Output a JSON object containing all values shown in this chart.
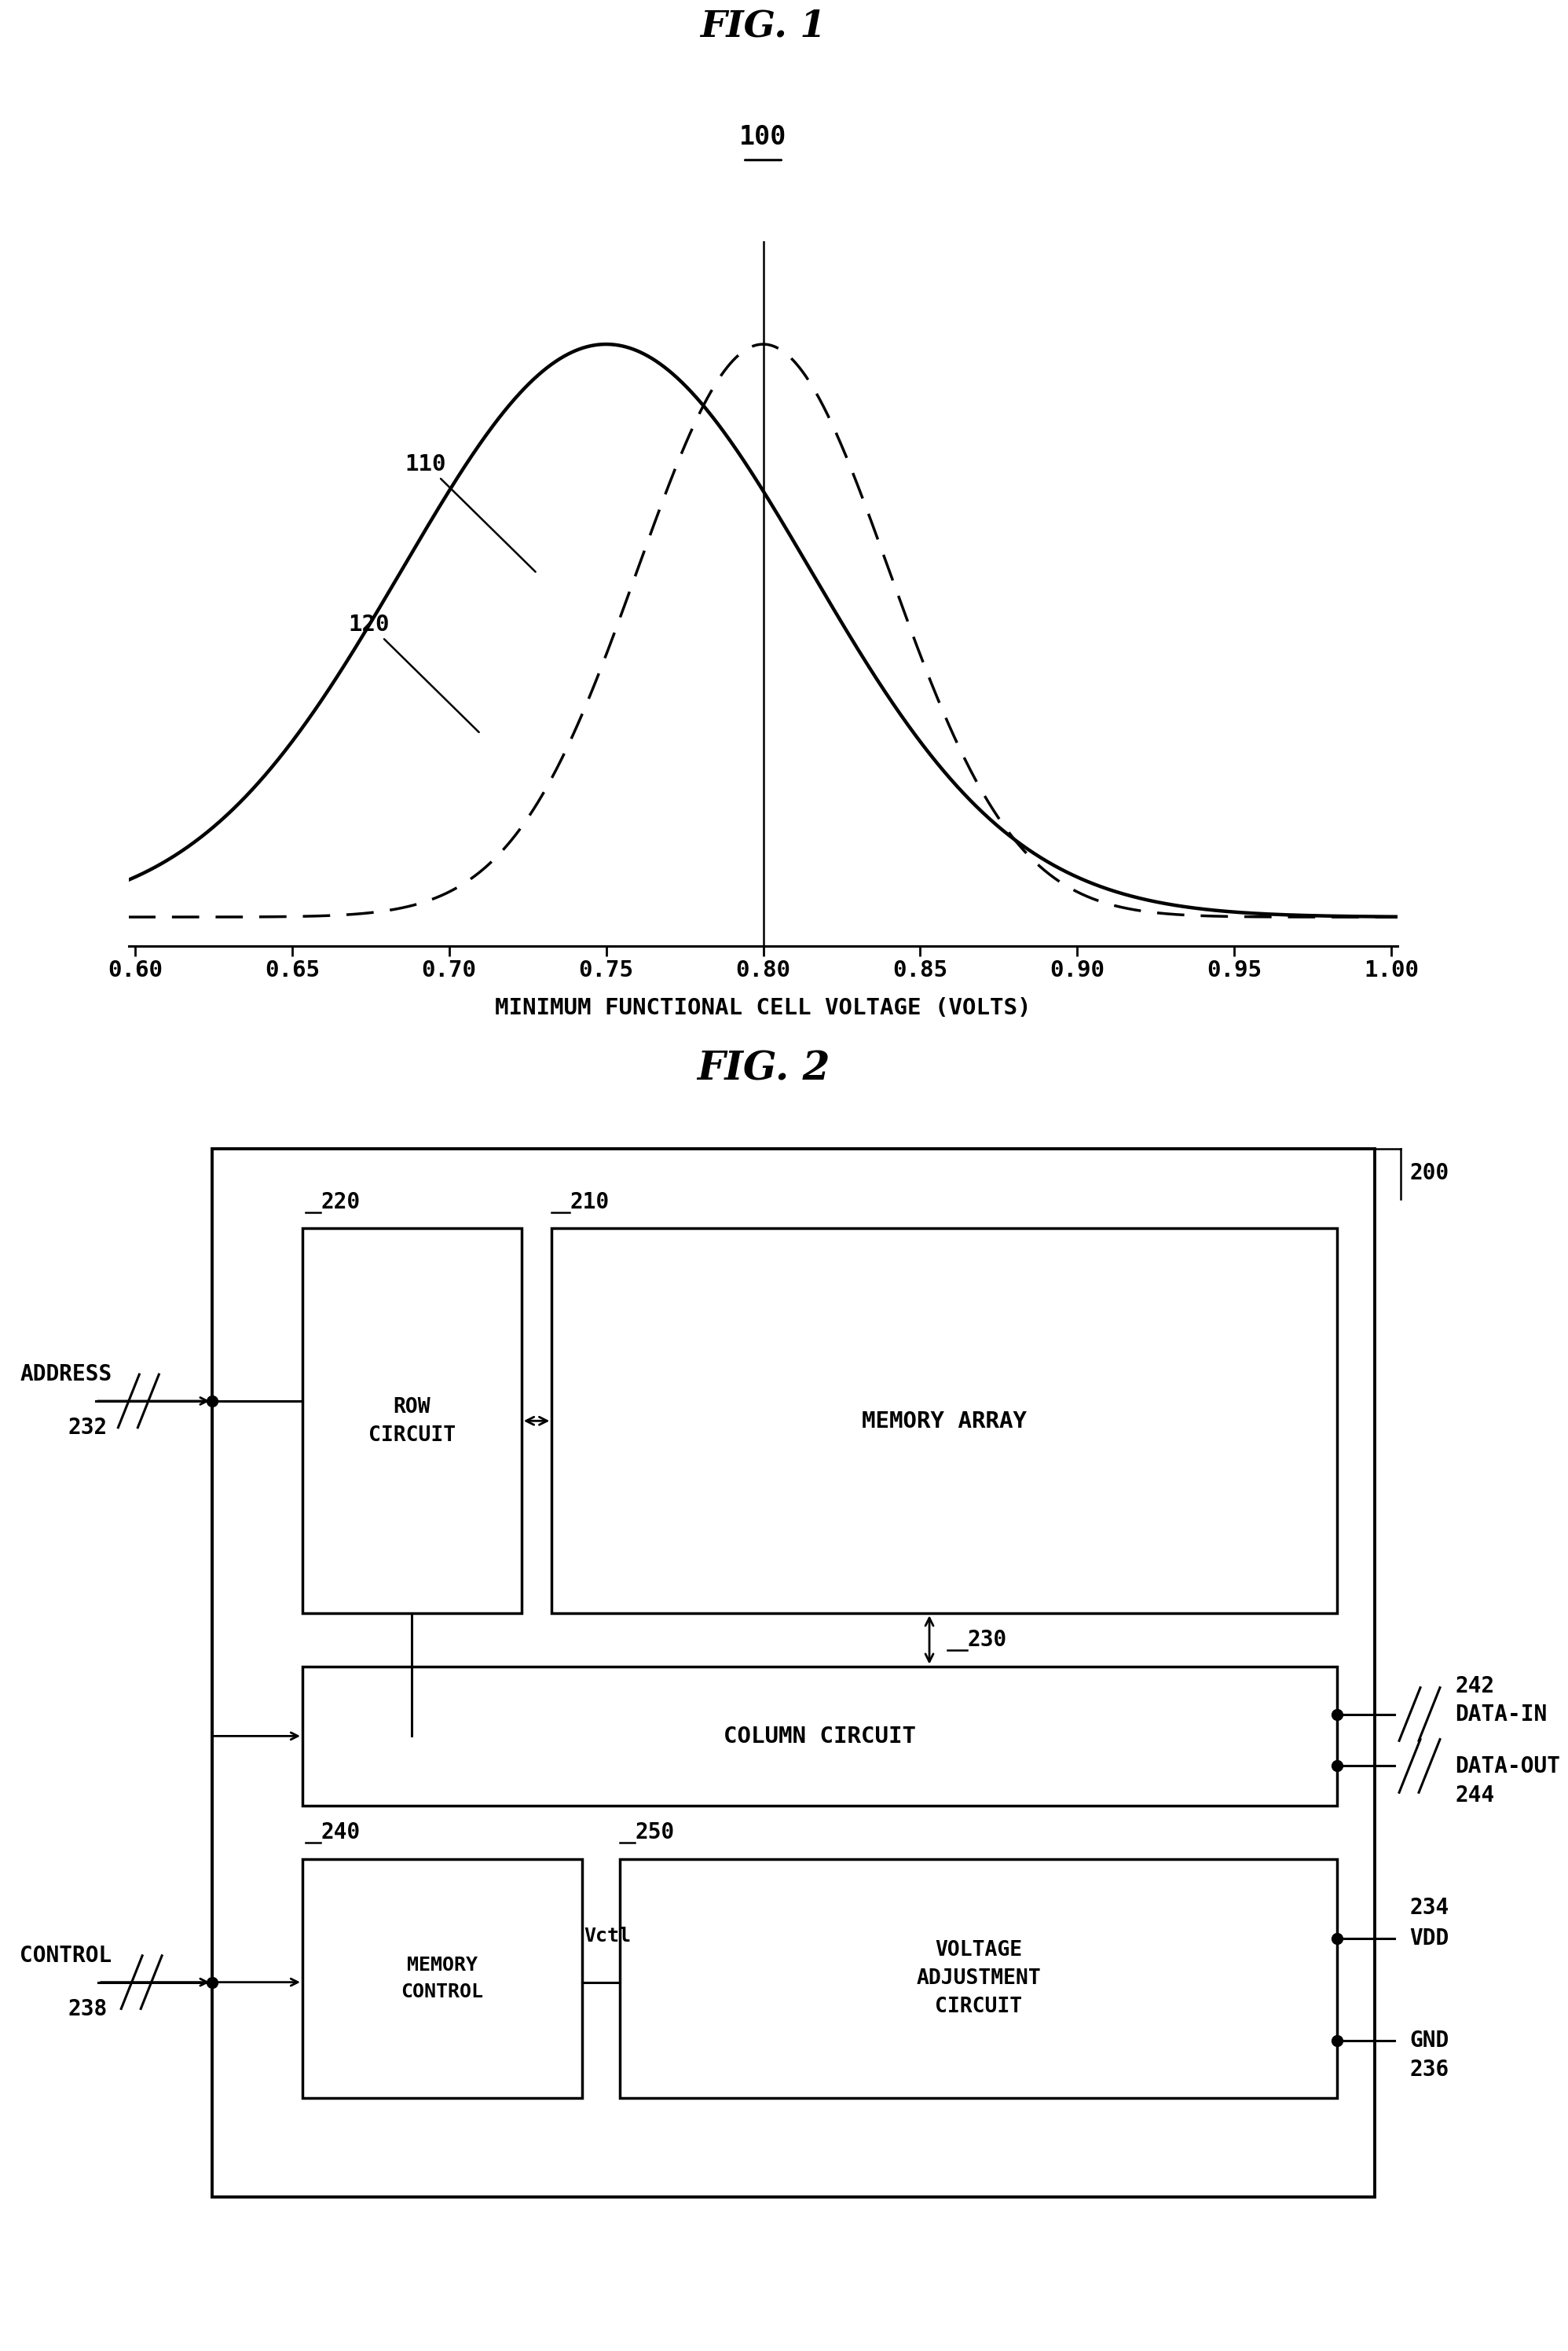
{
  "fig1_title": "FIG. 1",
  "fig1_label": "100",
  "curve1_label": "110",
  "curve2_label": "120",
  "solid_mean": 0.75,
  "solid_std": 0.065,
  "dashed_mean": 0.8,
  "dashed_std": 0.04,
  "xmin": 0.6,
  "xmax": 1.0,
  "xticks": [
    0.6,
    0.65,
    0.7,
    0.75,
    0.8,
    0.85,
    0.9,
    0.95,
    1.0
  ],
  "xlabel": "MINIMUM FUNCTIONAL CELL VOLTAGE (VOLTS)",
  "vertical_line_x": 0.8,
  "fig2_title": "FIG. 2",
  "box_200_label": "200",
  "box_210_label": "210",
  "box_220_label": "220",
  "box_230_label": "230",
  "box_240_label": "240",
  "box_250_label": "250",
  "text_memory_array": "MEMORY ARRAY",
  "text_row_circuit": "ROW\nCIRCUIT",
  "text_column_circuit": "COLUMN CIRCUIT",
  "text_memory_control": "MEMORY\nCONTROL",
  "text_voltage_adj": "VOLTAGE\nADJUSTMENT\nCIRCUIT",
  "text_address": "ADDRESS",
  "label_232": "232",
  "text_control": "CONTROL",
  "label_238": "238",
  "text_data_in": "DATA-IN",
  "label_242": "242",
  "text_data_out": "DATA-OUT",
  "label_244": "244",
  "text_vdd": "VDD",
  "label_234": "234",
  "text_gnd": "GND",
  "label_236": "236",
  "text_vctl": "Vctl",
  "bg_color": "#ffffff"
}
